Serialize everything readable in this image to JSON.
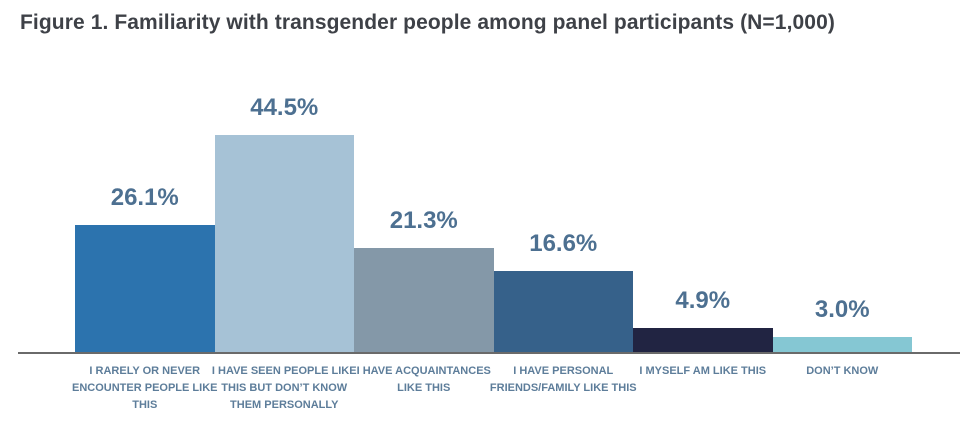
{
  "title": "Figure 1. Familiarity with transgender people among panel participants (N=1,000)",
  "colors": {
    "title_text": "#3e4147",
    "value_label_text": "#4d7091",
    "category_label_text": "#5d7d9a",
    "axis_line": "#6a6a6a",
    "background": "#ffffff"
  },
  "chart_data": {
    "type": "bar",
    "title": "Figure 1. Familiarity with transgender people among panel participants (N=1,000)",
    "categories": [
      "I RARELY OR NEVER ENCOUNTER PEOPLE LIKE THIS",
      "I HAVE SEEN PEOPLE LIKE THIS BUT DON’T KNOW THEM PERSONALLY",
      "I HAVE ACQUAINTANCES LIKE THIS",
      "I HAVE PERSONAL FRIENDS/FAMILY LIKE THIS",
      "I MYSELF AM LIKE THIS",
      "DON’T KNOW"
    ],
    "values": [
      26.1,
      44.5,
      21.3,
      16.6,
      4.9,
      3.0
    ],
    "value_labels": [
      "26.1%",
      "44.5%",
      "21.3%",
      "16.6%",
      "4.9%",
      "3.0%"
    ],
    "bar_colors": [
      "#2c73ae",
      "#a6c2d6",
      "#8498a8",
      "#36618a",
      "#212442",
      "#85c7d3"
    ],
    "xlabel": "",
    "ylabel": "",
    "ylim": [
      0,
      50
    ],
    "grid": false,
    "legend": "none",
    "data_labels": "above-bars",
    "y_axis_ticks": "hidden"
  }
}
